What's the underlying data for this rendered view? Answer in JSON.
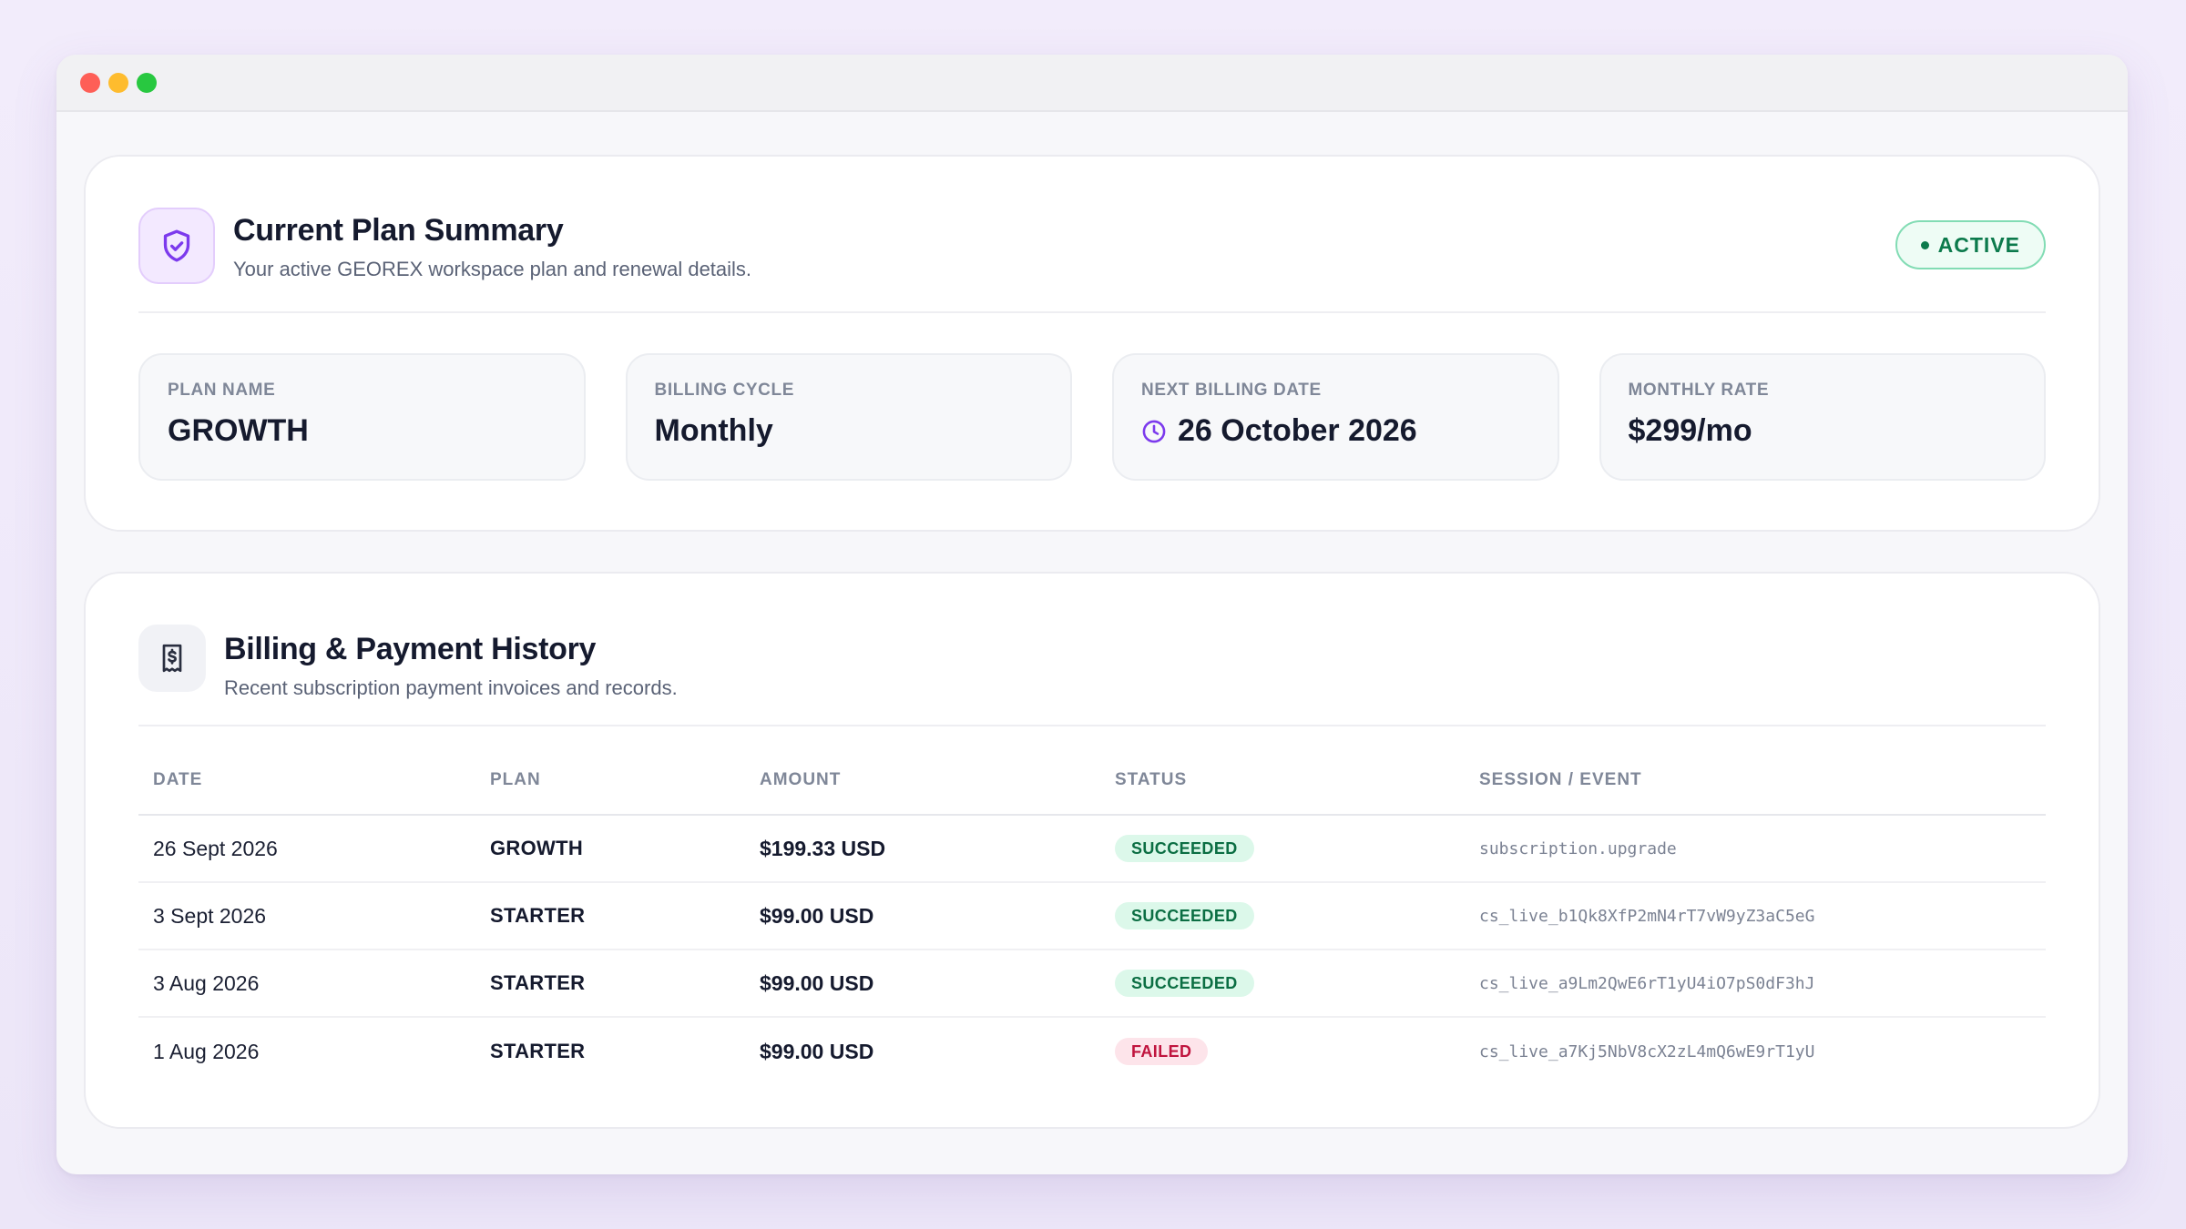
{
  "plan_summary": {
    "title": "Current Plan Summary",
    "subtitle": "Your active GEOREX workspace plan and renewal details.",
    "status": "ACTIVE",
    "plan_name": {
      "label": "PLAN NAME",
      "value": "GROWTH"
    },
    "billing_cycle": {
      "label": "BILLING CYCLE",
      "value": "Monthly"
    },
    "next_billing": {
      "label": "NEXT BILLING DATE",
      "value": "26 October 2026"
    },
    "monthly_rate": {
      "label": "MONTHLY RATE",
      "value": "$299/mo"
    }
  },
  "history": {
    "title": "Billing & Payment History",
    "subtitle": "Recent subscription payment invoices and records.",
    "columns": {
      "date": "DATE",
      "plan": "PLAN",
      "amount": "AMOUNT",
      "status": "STATUS",
      "event": "SESSION / EVENT"
    },
    "rows": [
      {
        "date": "26 Sept 2026",
        "plan": "GROWTH",
        "amount": "$199.33 USD",
        "status": "SUCCEEDED",
        "event": "subscription.upgrade"
      },
      {
        "date": "3 Sept 2026",
        "plan": "STARTER",
        "amount": "$99.00 USD",
        "status": "SUCCEEDED",
        "event": "cs_live_b1Qk8XfP2mN4rT7vW9yZ3aC5eG"
      },
      {
        "date": "3 Aug 2026",
        "plan": "STARTER",
        "amount": "$99.00 USD",
        "status": "SUCCEEDED",
        "event": "cs_live_a9Lm2QwE6rT1yU4iO7pS0dF3hJ"
      },
      {
        "date": "1 Aug 2026",
        "plan": "STARTER",
        "amount": "$99.00 USD",
        "status": "FAILED",
        "event": "cs_live_a7Kj5NbV8cX2zL4mQ6wE9rT1yU"
      }
    ]
  },
  "icons": {
    "plan": "shield-check-icon",
    "billing": "receipt-dollar-icon",
    "date": "clock-icon"
  },
  "colors": {
    "accent": "#7c3aed",
    "success": "#0b6e43",
    "failed": "#c0143e"
  }
}
